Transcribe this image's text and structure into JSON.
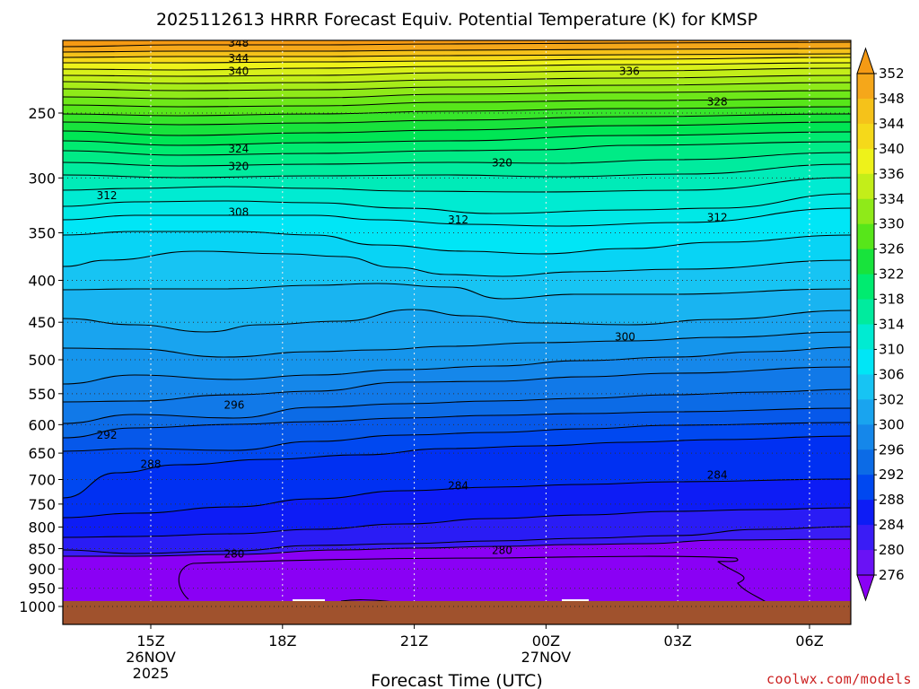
{
  "chart_data": {
    "type": "contour",
    "title": "2025112613 HRRR Forecast Equiv. Potential Temperature (K) for KMSP",
    "xlabel": "Forecast Time (UTC)",
    "ylabel": "",
    "y_axis": {
      "ticks": [
        250,
        300,
        350,
        400,
        450,
        500,
        550,
        600,
        650,
        700,
        750,
        800,
        850,
        900,
        950,
        1000
      ],
      "tick_labels": [
        "250",
        "300",
        "350",
        "400",
        "450",
        "500",
        "550",
        "600",
        "650",
        "700",
        "750",
        "800",
        "850",
        "900",
        "950",
        "1000"
      ],
      "inverted_log_scale": true,
      "range": [
        1000,
        200
      ]
    },
    "x_axis": {
      "ticks": [
        {
          "label": "15Z",
          "sub1": "26NOV",
          "sub2": "2025"
        },
        {
          "label": "18Z",
          "sub1": "",
          "sub2": ""
        },
        {
          "label": "21Z",
          "sub1": "",
          "sub2": ""
        },
        {
          "label": "00Z",
          "sub1": "27NOV",
          "sub2": ""
        },
        {
          "label": "03Z",
          "sub1": "",
          "sub2": ""
        },
        {
          "label": "06Z",
          "sub1": "",
          "sub2": ""
        }
      ],
      "hours": [
        15,
        18,
        21,
        24,
        27,
        30
      ],
      "range_hours": [
        13,
        31
      ]
    },
    "colorbar": {
      "levels": [
        276,
        280,
        284,
        288,
        292,
        296,
        300,
        302,
        306,
        310,
        314,
        318,
        322,
        326,
        330,
        334,
        336,
        340,
        344,
        348,
        352
      ],
      "colors": [
        "#8a00f5",
        "#6a12f5",
        "#3a1cf5",
        "#0d1cf5",
        "#0048f0",
        "#0c6be6",
        "#1587ea",
        "#19a4ef",
        "#17c4f3",
        "#00e6f6",
        "#00ebd2",
        "#00eb9e",
        "#00eb70",
        "#18e33c",
        "#57e61a",
        "#8fea19",
        "#c3ee19",
        "#eef21a",
        "#f5d91a",
        "#f5c21a",
        "#f5a71a",
        "#f59a14"
      ]
    },
    "contour_labels": [
      {
        "text": "348",
        "hour": 17.0,
        "p": 205
      },
      {
        "text": "344",
        "hour": 17.0,
        "p": 214
      },
      {
        "text": "340",
        "hour": 17.0,
        "p": 222
      },
      {
        "text": "336",
        "hour": 25.9,
        "p": 222
      },
      {
        "text": "328",
        "hour": 27.9,
        "p": 242
      },
      {
        "text": "324",
        "hour": 17.0,
        "p": 276
      },
      {
        "text": "320",
        "hour": 17.0,
        "p": 290
      },
      {
        "text": "320",
        "hour": 23.0,
        "p": 287
      },
      {
        "text": "312",
        "hour": 14.0,
        "p": 315
      },
      {
        "text": "308",
        "hour": 17.0,
        "p": 330
      },
      {
        "text": "312",
        "hour": 22.0,
        "p": 337
      },
      {
        "text": "312",
        "hour": 27.9,
        "p": 335
      },
      {
        "text": "300",
        "hour": 25.8,
        "p": 468
      },
      {
        "text": "296",
        "hour": 16.9,
        "p": 567
      },
      {
        "text": "292",
        "hour": 14.0,
        "p": 617
      },
      {
        "text": "288",
        "hour": 15.0,
        "p": 670
      },
      {
        "text": "284",
        "hour": 22.0,
        "p": 712
      },
      {
        "text": "284",
        "hour": 27.9,
        "p": 690
      },
      {
        "text": "280",
        "hour": 16.9,
        "p": 862
      },
      {
        "text": "280",
        "hour": 23.0,
        "p": 853
      }
    ],
    "ground": {
      "color": "#a0522d",
      "p_top": 985
    }
  },
  "credit": "coolwx.com/models"
}
